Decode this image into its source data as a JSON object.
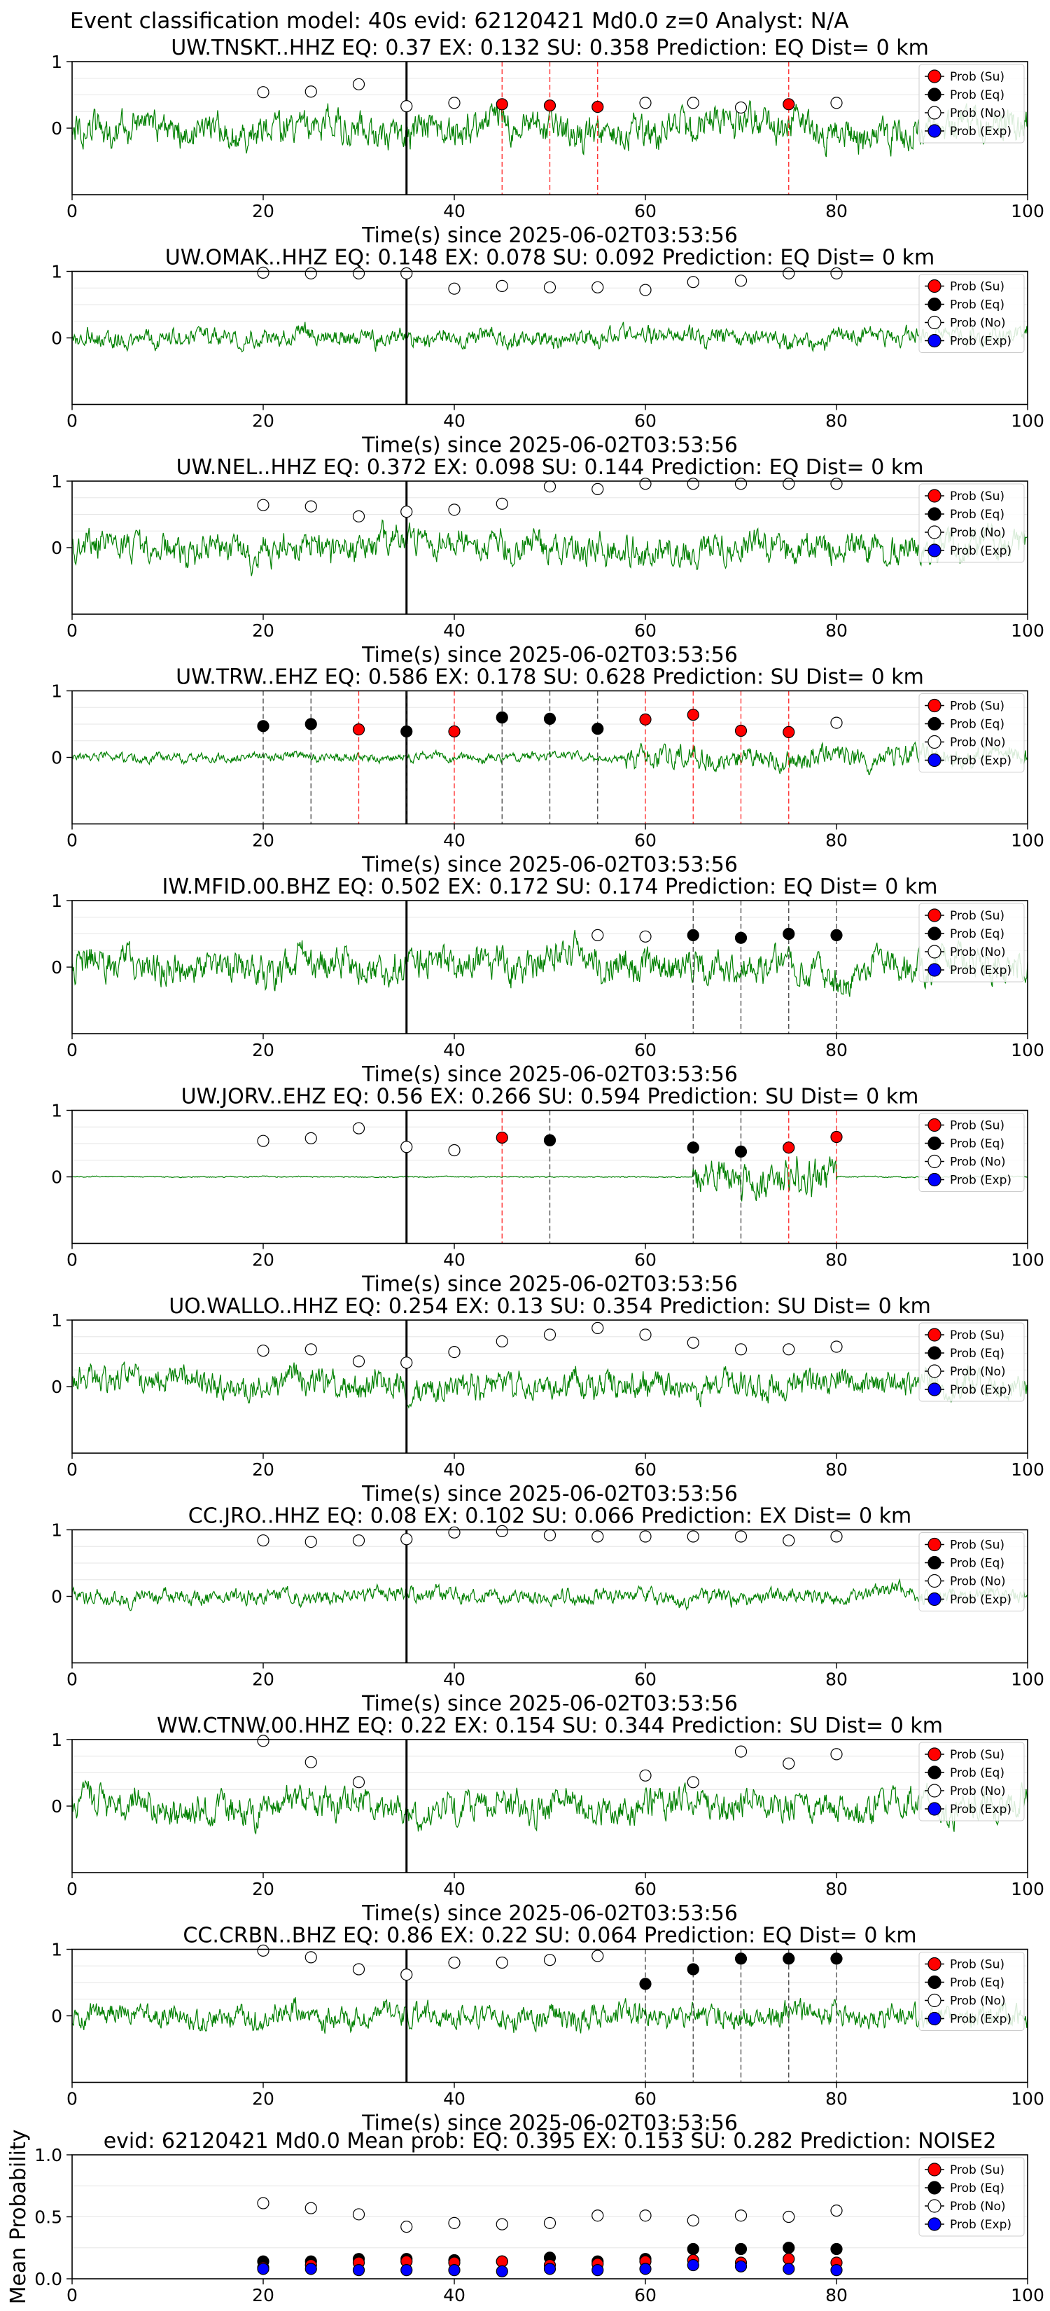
{
  "header": "Event classification model: 40s evid: 62120421 Md0.0 z=0 Analyst: N/A",
  "x_axis_label": "Time(s) since 2025-06-02T03:53:56",
  "legend": [
    "Prob (Su)",
    "Prob (Eq)",
    "Prob (No)",
    "Prob (Exp)"
  ],
  "colors": {
    "su": "#ff0000",
    "eq": "#000000",
    "no": "#ffffff",
    "exp": "#0000ff",
    "trace": "#008000"
  },
  "chart_data": [
    {
      "type": "line",
      "station": "UW.TNSKT..HHZ",
      "title": "UW.TNSKT..HHZ   EQ: 0.37   EX: 0.132   SU: 0.358   Prediction: EQ    Dist= 0 km",
      "xlim": [
        0,
        100
      ],
      "ylim": [
        -1,
        1
      ],
      "xticks": [
        0,
        20,
        40,
        60,
        80,
        100
      ],
      "yticks": [
        0,
        1
      ],
      "pick_time": 35,
      "trace_amplitude": 0.55,
      "trace_burst": null,
      "points": [
        {
          "x": 20,
          "y": 0.54,
          "class": "no"
        },
        {
          "x": 25,
          "y": 0.55,
          "class": "no"
        },
        {
          "x": 30,
          "y": 0.66,
          "class": "no"
        },
        {
          "x": 35,
          "y": 0.33,
          "class": "no"
        },
        {
          "x": 40,
          "y": 0.38,
          "class": "no"
        },
        {
          "x": 45,
          "y": 0.36,
          "class": "su"
        },
        {
          "x": 50,
          "y": 0.34,
          "class": "su"
        },
        {
          "x": 55,
          "y": 0.32,
          "class": "su"
        },
        {
          "x": 60,
          "y": 0.38,
          "class": "no"
        },
        {
          "x": 65,
          "y": 0.38,
          "class": "no"
        },
        {
          "x": 70,
          "y": 0.31,
          "class": "no"
        },
        {
          "x": 75,
          "y": 0.36,
          "class": "su"
        },
        {
          "x": 80,
          "y": 0.38,
          "class": "no"
        }
      ]
    },
    {
      "type": "line",
      "station": "UW.OMAK..HHZ",
      "title": "UW.OMAK..HHZ   EQ: 0.148   EX: 0.078   SU: 0.092   Prediction: EQ    Dist= 0 km",
      "xlim": [
        0,
        100
      ],
      "ylim": [
        -1,
        1
      ],
      "xticks": [
        0,
        20,
        40,
        60,
        80,
        100
      ],
      "yticks": [
        0,
        1
      ],
      "pick_time": 35,
      "trace_amplitude": 0.3,
      "trace_burst": null,
      "points": [
        {
          "x": 20,
          "y": 0.98,
          "class": "no"
        },
        {
          "x": 25,
          "y": 0.97,
          "class": "no"
        },
        {
          "x": 30,
          "y": 0.97,
          "class": "no"
        },
        {
          "x": 35,
          "y": 0.97,
          "class": "no"
        },
        {
          "x": 40,
          "y": 0.74,
          "class": "no"
        },
        {
          "x": 45,
          "y": 0.78,
          "class": "no"
        },
        {
          "x": 50,
          "y": 0.76,
          "class": "no"
        },
        {
          "x": 55,
          "y": 0.76,
          "class": "no"
        },
        {
          "x": 60,
          "y": 0.72,
          "class": "no"
        },
        {
          "x": 65,
          "y": 0.84,
          "class": "no"
        },
        {
          "x": 70,
          "y": 0.86,
          "class": "no"
        },
        {
          "x": 75,
          "y": 0.97,
          "class": "no"
        },
        {
          "x": 80,
          "y": 0.97,
          "class": "no"
        }
      ]
    },
    {
      "type": "line",
      "station": "UW.NEL..HHZ",
      "title": "UW.NEL..HHZ   EQ: 0.372   EX: 0.098   SU: 0.144   Prediction: EQ    Dist= 0 km",
      "xlim": [
        0,
        100
      ],
      "ylim": [
        -1,
        1
      ],
      "xticks": [
        0,
        20,
        40,
        60,
        80,
        100
      ],
      "yticks": [
        0,
        1
      ],
      "pick_time": 35,
      "trace_amplitude": 0.5,
      "trace_burst": null,
      "points": [
        {
          "x": 20,
          "y": 0.64,
          "class": "no"
        },
        {
          "x": 25,
          "y": 0.62,
          "class": "no"
        },
        {
          "x": 30,
          "y": 0.47,
          "class": "no"
        },
        {
          "x": 35,
          "y": 0.54,
          "class": "no"
        },
        {
          "x": 40,
          "y": 0.57,
          "class": "no"
        },
        {
          "x": 45,
          "y": 0.66,
          "class": "no"
        },
        {
          "x": 50,
          "y": 0.92,
          "class": "no"
        },
        {
          "x": 55,
          "y": 0.88,
          "class": "no"
        },
        {
          "x": 60,
          "y": 0.96,
          "class": "no"
        },
        {
          "x": 65,
          "y": 0.96,
          "class": "no"
        },
        {
          "x": 70,
          "y": 0.96,
          "class": "no"
        },
        {
          "x": 75,
          "y": 0.96,
          "class": "no"
        },
        {
          "x": 80,
          "y": 0.96,
          "class": "no"
        }
      ]
    },
    {
      "type": "line",
      "station": "UW.TRW..EHZ",
      "title": "UW.TRW..EHZ   EQ: 0.586   EX: 0.178   SU: 0.628   Prediction: SU    Dist= 0 km",
      "xlim": [
        0,
        100
      ],
      "ylim": [
        -1,
        1
      ],
      "xticks": [
        0,
        20,
        40,
        60,
        80,
        100
      ],
      "yticks": [
        0,
        1
      ],
      "pick_time": 35,
      "trace_amplitude": 0.15,
      "trace_burst": [
        58,
        100,
        0.35
      ],
      "points": [
        {
          "x": 20,
          "y": 0.47,
          "class": "eq"
        },
        {
          "x": 25,
          "y": 0.5,
          "class": "eq"
        },
        {
          "x": 30,
          "y": 0.42,
          "class": "su"
        },
        {
          "x": 35,
          "y": 0.39,
          "class": "eq"
        },
        {
          "x": 40,
          "y": 0.39,
          "class": "su"
        },
        {
          "x": 45,
          "y": 0.6,
          "class": "eq"
        },
        {
          "x": 50,
          "y": 0.58,
          "class": "eq"
        },
        {
          "x": 55,
          "y": 0.43,
          "class": "eq"
        },
        {
          "x": 60,
          "y": 0.57,
          "class": "su"
        },
        {
          "x": 65,
          "y": 0.64,
          "class": "su"
        },
        {
          "x": 70,
          "y": 0.4,
          "class": "su"
        },
        {
          "x": 75,
          "y": 0.38,
          "class": "su"
        },
        {
          "x": 80,
          "y": 0.52,
          "class": "no"
        }
      ]
    },
    {
      "type": "line",
      "station": "IW.MFID.00.BHZ",
      "title": "IW.MFID.00.BHZ   EQ: 0.502   EX: 0.172   SU: 0.174   Prediction: EQ    Dist= 0 km",
      "xlim": [
        0,
        100
      ],
      "ylim": [
        -1,
        1
      ],
      "xticks": [
        0,
        20,
        40,
        60,
        80,
        100
      ],
      "yticks": [
        0,
        1
      ],
      "pick_time": 35,
      "trace_amplitude": 0.55,
      "trace_burst": null,
      "points": [
        {
          "x": 55,
          "y": 0.48,
          "class": "no"
        },
        {
          "x": 60,
          "y": 0.46,
          "class": "no"
        },
        {
          "x": 65,
          "y": 0.48,
          "class": "eq"
        },
        {
          "x": 70,
          "y": 0.44,
          "class": "eq"
        },
        {
          "x": 75,
          "y": 0.5,
          "class": "eq"
        },
        {
          "x": 80,
          "y": 0.48,
          "class": "eq"
        }
      ]
    },
    {
      "type": "line",
      "station": "UW.JORV..EHZ",
      "title": "UW.JORV..EHZ   EQ: 0.56   EX: 0.266   SU: 0.594   Prediction: SU    Dist= 0 km",
      "xlim": [
        0,
        100
      ],
      "ylim": [
        -1,
        1
      ],
      "xticks": [
        0,
        20,
        40,
        60,
        80,
        100
      ],
      "yticks": [
        0,
        1
      ],
      "pick_time": 35,
      "trace_amplitude": 0.02,
      "trace_burst": [
        65,
        80,
        0.6
      ],
      "points": [
        {
          "x": 20,
          "y": 0.54,
          "class": "no"
        },
        {
          "x": 25,
          "y": 0.58,
          "class": "no"
        },
        {
          "x": 30,
          "y": 0.73,
          "class": "no"
        },
        {
          "x": 35,
          "y": 0.45,
          "class": "no"
        },
        {
          "x": 40,
          "y": 0.4,
          "class": "no"
        },
        {
          "x": 45,
          "y": 0.59,
          "class": "su"
        },
        {
          "x": 50,
          "y": 0.55,
          "class": "eq"
        },
        {
          "x": 65,
          "y": 0.44,
          "class": "eq"
        },
        {
          "x": 70,
          "y": 0.38,
          "class": "eq"
        },
        {
          "x": 75,
          "y": 0.44,
          "class": "su"
        },
        {
          "x": 80,
          "y": 0.6,
          "class": "su"
        }
      ]
    },
    {
      "type": "line",
      "station": "UO.WALLO..HHZ",
      "title": "UO.WALLO..HHZ   EQ: 0.254   EX: 0.13   SU: 0.354   Prediction: SU    Dist= 0 km",
      "xlim": [
        0,
        100
      ],
      "ylim": [
        -1,
        1
      ],
      "xticks": [
        0,
        20,
        40,
        60,
        80,
        100
      ],
      "yticks": [
        0,
        1
      ],
      "pick_time": 35,
      "trace_amplitude": 0.45,
      "trace_burst": null,
      "points": [
        {
          "x": 20,
          "y": 0.54,
          "class": "no"
        },
        {
          "x": 25,
          "y": 0.56,
          "class": "no"
        },
        {
          "x": 30,
          "y": 0.38,
          "class": "no"
        },
        {
          "x": 35,
          "y": 0.36,
          "class": "no"
        },
        {
          "x": 40,
          "y": 0.52,
          "class": "no"
        },
        {
          "x": 45,
          "y": 0.68,
          "class": "no"
        },
        {
          "x": 50,
          "y": 0.78,
          "class": "no"
        },
        {
          "x": 55,
          "y": 0.88,
          "class": "no"
        },
        {
          "x": 60,
          "y": 0.78,
          "class": "no"
        },
        {
          "x": 65,
          "y": 0.66,
          "class": "no"
        },
        {
          "x": 70,
          "y": 0.56,
          "class": "no"
        },
        {
          "x": 75,
          "y": 0.56,
          "class": "no"
        },
        {
          "x": 80,
          "y": 0.6,
          "class": "no"
        }
      ]
    },
    {
      "type": "line",
      "station": "CC.JRO..HHZ",
      "title": "CC.JRO..HHZ   EQ: 0.08   EX: 0.102   SU: 0.066   Prediction: EX    Dist= 0 km",
      "xlim": [
        0,
        100
      ],
      "ylim": [
        -1,
        1
      ],
      "xticks": [
        0,
        20,
        40,
        60,
        80,
        100
      ],
      "yticks": [
        0,
        1
      ],
      "pick_time": 35,
      "trace_amplitude": 0.25,
      "trace_burst": null,
      "points": [
        {
          "x": 20,
          "y": 0.84,
          "class": "no"
        },
        {
          "x": 25,
          "y": 0.82,
          "class": "no"
        },
        {
          "x": 30,
          "y": 0.84,
          "class": "no"
        },
        {
          "x": 35,
          "y": 0.86,
          "class": "no"
        },
        {
          "x": 40,
          "y": 0.96,
          "class": "no"
        },
        {
          "x": 45,
          "y": 0.98,
          "class": "no"
        },
        {
          "x": 50,
          "y": 0.92,
          "class": "no"
        },
        {
          "x": 55,
          "y": 0.9,
          "class": "no"
        },
        {
          "x": 60,
          "y": 0.9,
          "class": "no"
        },
        {
          "x": 65,
          "y": 0.9,
          "class": "no"
        },
        {
          "x": 70,
          "y": 0.9,
          "class": "no"
        },
        {
          "x": 75,
          "y": 0.84,
          "class": "no"
        },
        {
          "x": 80,
          "y": 0.9,
          "class": "no"
        }
      ]
    },
    {
      "type": "line",
      "station": "WW.CTNW.00.HHZ",
      "title": "WW.CTNW.00.HHZ   EQ: 0.22   EX: 0.154   SU: 0.344   Prediction: SU    Dist= 0 km",
      "xlim": [
        0,
        100
      ],
      "ylim": [
        -1,
        1
      ],
      "xticks": [
        0,
        20,
        40,
        60,
        80,
        100
      ],
      "yticks": [
        0,
        1
      ],
      "pick_time": 35,
      "trace_amplitude": 0.5,
      "trace_burst": null,
      "points": [
        {
          "x": 20,
          "y": 0.98,
          "class": "no"
        },
        {
          "x": 25,
          "y": 0.66,
          "class": "no"
        },
        {
          "x": 30,
          "y": 0.36,
          "class": "no"
        },
        {
          "x": 60,
          "y": 0.46,
          "class": "no"
        },
        {
          "x": 65,
          "y": 0.36,
          "class": "no"
        },
        {
          "x": 70,
          "y": 0.82,
          "class": "no"
        },
        {
          "x": 75,
          "y": 0.64,
          "class": "no"
        },
        {
          "x": 80,
          "y": 0.78,
          "class": "no"
        }
      ]
    },
    {
      "type": "line",
      "station": "CC.CRBN..BHZ",
      "title": "CC.CRBN..BHZ   EQ: 0.86   EX: 0.22   SU: 0.064   Prediction: EQ    Dist= 0 km",
      "xlim": [
        0,
        100
      ],
      "ylim": [
        -1,
        1
      ],
      "xticks": [
        0,
        20,
        40,
        60,
        80,
        100
      ],
      "yticks": [
        0,
        1
      ],
      "pick_time": 35,
      "trace_amplitude": 0.4,
      "trace_burst": null,
      "points": [
        {
          "x": 20,
          "y": 0.98,
          "class": "no"
        },
        {
          "x": 25,
          "y": 0.88,
          "class": "no"
        },
        {
          "x": 30,
          "y": 0.7,
          "class": "no"
        },
        {
          "x": 35,
          "y": 0.62,
          "class": "no"
        },
        {
          "x": 40,
          "y": 0.8,
          "class": "no"
        },
        {
          "x": 45,
          "y": 0.8,
          "class": "no"
        },
        {
          "x": 50,
          "y": 0.84,
          "class": "no"
        },
        {
          "x": 55,
          "y": 0.9,
          "class": "no"
        },
        {
          "x": 60,
          "y": 0.48,
          "class": "eq"
        },
        {
          "x": 65,
          "y": 0.7,
          "class": "eq"
        },
        {
          "x": 70,
          "y": 0.86,
          "class": "eq"
        },
        {
          "x": 75,
          "y": 0.86,
          "class": "eq"
        },
        {
          "x": 80,
          "y": 0.86,
          "class": "eq"
        }
      ]
    },
    {
      "type": "scatter",
      "station": "mean",
      "title": "evid: 62120421  Md0.0   Mean prob:   EQ: 0.395   EX: 0.153   SU: 0.282   Prediction: NOISE2",
      "ylabel": "Mean Probability",
      "xlim": [
        0,
        100
      ],
      "ylim": [
        0,
        1
      ],
      "xticks": [
        0,
        20,
        40,
        60,
        80,
        100
      ],
      "yticks": [
        0.0,
        0.5,
        1.0
      ],
      "series": [
        {
          "name": "Prob (No)",
          "class": "no",
          "x": [
            20,
            25,
            30,
            35,
            40,
            45,
            50,
            55,
            60,
            65,
            70,
            75,
            80
          ],
          "y": [
            0.61,
            0.57,
            0.52,
            0.42,
            0.45,
            0.44,
            0.45,
            0.51,
            0.51,
            0.47,
            0.51,
            0.5,
            0.55
          ]
        },
        {
          "name": "Prob (Eq)",
          "class": "eq",
          "x": [
            20,
            25,
            30,
            35,
            40,
            45,
            50,
            55,
            60,
            65,
            70,
            75,
            80
          ],
          "y": [
            0.14,
            0.14,
            0.16,
            0.16,
            0.15,
            0.14,
            0.17,
            0.14,
            0.16,
            0.24,
            0.24,
            0.25,
            0.24
          ]
        },
        {
          "name": "Prob (Su)",
          "class": "su",
          "x": [
            20,
            25,
            30,
            35,
            40,
            45,
            50,
            55,
            60,
            65,
            70,
            75,
            80
          ],
          "y": [
            0.09,
            0.11,
            0.13,
            0.14,
            0.13,
            0.14,
            0.11,
            0.12,
            0.14,
            0.15,
            0.13,
            0.16,
            0.13
          ]
        },
        {
          "name": "Prob (Exp)",
          "class": "exp",
          "x": [
            20,
            25,
            30,
            35,
            40,
            45,
            50,
            55,
            60,
            65,
            70,
            75,
            80
          ],
          "y": [
            0.08,
            0.08,
            0.07,
            0.07,
            0.07,
            0.06,
            0.08,
            0.07,
            0.08,
            0.11,
            0.1,
            0.08,
            0.07
          ]
        }
      ]
    }
  ]
}
